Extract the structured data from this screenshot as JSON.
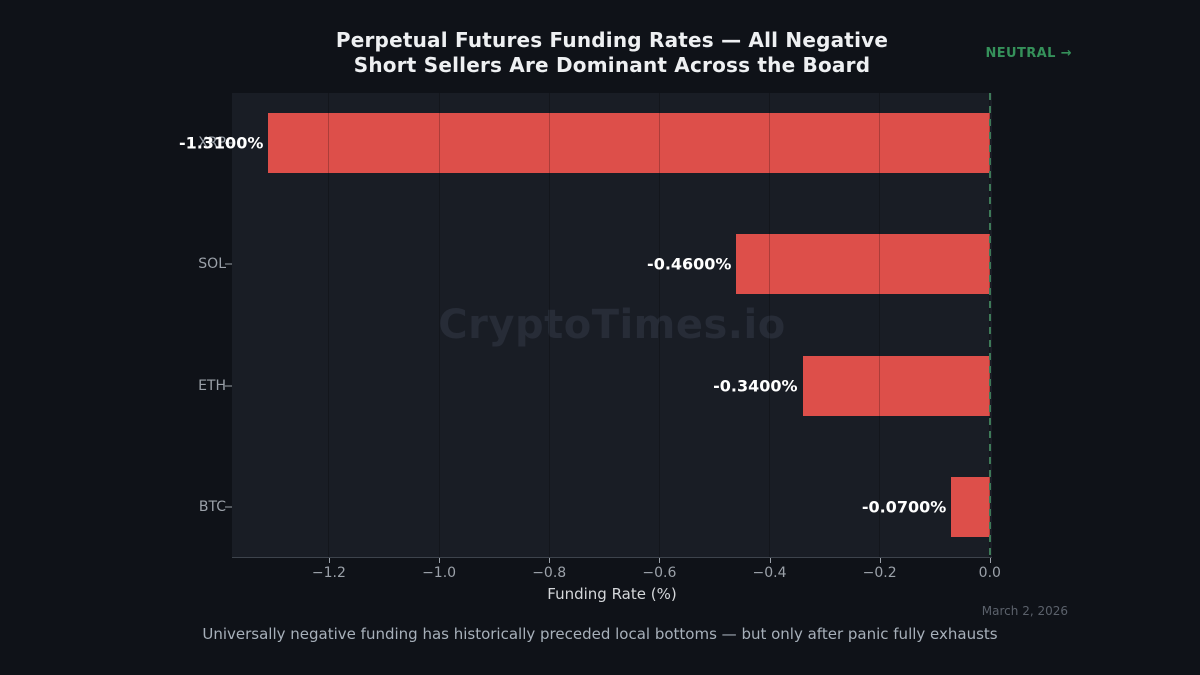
{
  "header": {
    "title_line1": "Perpetual Futures Funding Rates — All Negative",
    "title_line2": "Short Sellers Are Dominant Across the Board",
    "badge_label": "NEUTRAL →",
    "badge_color": "#35915a"
  },
  "chart_data": {
    "type": "bar",
    "orientation": "horizontal",
    "categories": [
      "XRP",
      "SOL",
      "ETH",
      "BTC"
    ],
    "values": [
      -1.31,
      -0.46,
      -0.34,
      -0.07
    ],
    "value_labels": [
      "-1.3100%",
      "-0.4600%",
      "-0.3400%",
      "-0.0700%"
    ],
    "bar_color": "#dd4f4a",
    "xlabel": "Funding Rate (%)",
    "xtick_labels": [
      "−1.2",
      "−1.0",
      "−0.8",
      "−0.6",
      "−0.4",
      "−0.2",
      "0.0"
    ],
    "xtick_values": [
      -1.2,
      -1.0,
      -0.8,
      -0.6,
      -0.4,
      -0.2,
      0.0
    ],
    "xlim": [
      -1.376,
      0.004
    ],
    "grid": "vertical",
    "zero_line": {
      "value": 0.0,
      "style": "dashed",
      "color": "#3e7a58"
    }
  },
  "watermark": "CryptoTimes.io",
  "footer": {
    "note": "Universally negative funding has historically preceded local bottoms — but only after panic fully exhausts",
    "date": "March 2, 2026"
  }
}
